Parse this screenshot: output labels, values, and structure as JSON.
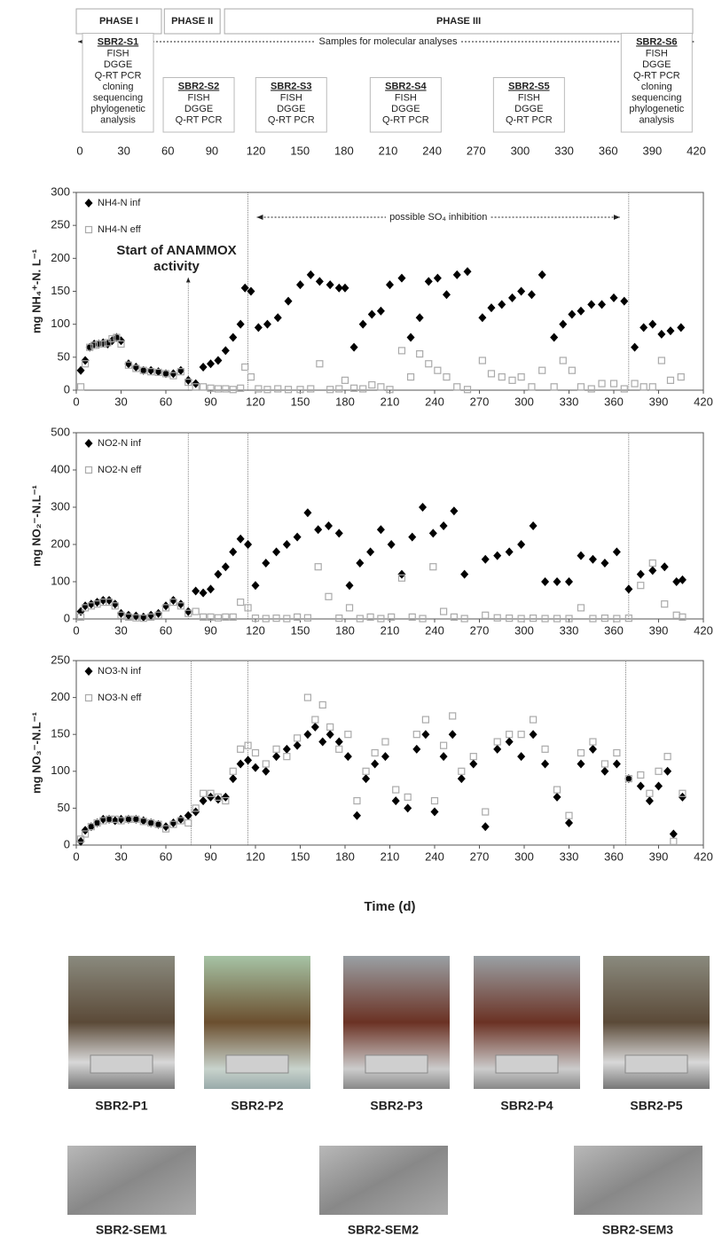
{
  "timeline": {
    "xlim": [
      0,
      420
    ],
    "xticks": [
      0,
      30,
      60,
      90,
      120,
      150,
      180,
      210,
      240,
      270,
      300,
      330,
      360,
      390,
      420
    ],
    "phases": [
      {
        "label": "PHASE I",
        "start": 0,
        "end": 58
      },
      {
        "label": "PHASE II",
        "start": 60,
        "end": 98
      },
      {
        "label": "PHASE III",
        "start": 101,
        "end": 420
      }
    ],
    "samples_label": "Samples for molecular analyses",
    "samples": [
      {
        "title": "SBR2-S1",
        "day": 26,
        "lines": [
          "FISH",
          "DGGE",
          "Q-RT PCR",
          "cloning",
          "sequencing",
          "phylogenetic",
          "analysis"
        ]
      },
      {
        "title": "SBR2-S2",
        "day": 81,
        "lines": [
          "FISH",
          "DGGE",
          "Q-RT PCR"
        ]
      },
      {
        "title": "SBR2-S3",
        "day": 144,
        "lines": [
          "FISH",
          "DGGE",
          "Q-RT PCR"
        ]
      },
      {
        "title": "SBR2-S4",
        "day": 222,
        "lines": [
          "FISH",
          "DGGE",
          "Q-RT PCR"
        ]
      },
      {
        "title": "SBR2-S5",
        "day": 306,
        "lines": [
          "FISH",
          "DGGE",
          "Q-RT PCR"
        ]
      },
      {
        "title": "SBR2-S6",
        "day": 393,
        "lines": [
          "FISH",
          "DGGE",
          "Q-RT PCR",
          "cloning",
          "sequencing",
          "phylogenetic",
          "analysis"
        ]
      }
    ]
  },
  "chart_data": [
    {
      "type": "scatter",
      "ylabel": "mg NH₄⁺-N. L⁻¹",
      "xlim": [
        0,
        420
      ],
      "xticks": [
        0,
        30,
        60,
        90,
        120,
        150,
        180,
        210,
        240,
        270,
        300,
        330,
        360,
        390,
        420
      ],
      "ylim": [
        0,
        300
      ],
      "yticks": [
        0,
        50,
        100,
        150,
        200,
        250,
        300
      ],
      "legend": "upper left",
      "vlines": [
        75,
        115,
        370
      ],
      "annotation": [
        "Start of ANAMMOX",
        "activity"
      ],
      "range_annotation": "possible SO₄ inhibition",
      "x": [
        3,
        6,
        9,
        12,
        15,
        18,
        21,
        24,
        27,
        30,
        35,
        40,
        45,
        50,
        55,
        60,
        65,
        70,
        75,
        80,
        85,
        90,
        95,
        100,
        105,
        110,
        113,
        117,
        122,
        128,
        135,
        142,
        150,
        157,
        163,
        170,
        176,
        180,
        186,
        192,
        198,
        204,
        210,
        218,
        224,
        230,
        236,
        242,
        248,
        255,
        262,
        272,
        278,
        285,
        292,
        298,
        305,
        312,
        320,
        326,
        332,
        338,
        345,
        352,
        360,
        367,
        374,
        380,
        386,
        392,
        398,
        405
      ],
      "series": [
        {
          "name": "NH4-N inf",
          "color": "#000000",
          "marker": "diamond",
          "values": [
            30,
            45,
            65,
            70,
            70,
            72,
            70,
            75,
            80,
            75,
            40,
            35,
            30,
            30,
            28,
            25,
            25,
            30,
            15,
            10,
            35,
            40,
            45,
            60,
            80,
            100,
            155,
            150,
            95,
            100,
            110,
            135,
            160,
            175,
            165,
            160,
            155,
            155,
            65,
            100,
            115,
            120,
            160,
            170,
            80,
            110,
            165,
            170,
            145,
            175,
            180,
            110,
            125,
            130,
            140,
            150,
            145,
            175,
            80,
            100,
            115,
            120,
            130,
            130,
            140,
            135,
            65,
            95,
            100,
            85,
            90,
            95
          ]
        },
        {
          "name": "NH4-N eff",
          "color": "#aaaaaa",
          "marker": "square-open",
          "values": [
            5,
            40,
            65,
            68,
            70,
            70,
            72,
            78,
            80,
            70,
            38,
            33,
            30,
            28,
            27,
            25,
            22,
            28,
            12,
            5,
            5,
            3,
            2,
            2,
            1,
            3,
            35,
            20,
            2,
            1,
            2,
            1,
            1,
            2,
            40,
            1,
            2,
            15,
            3,
            2,
            8,
            5,
            1,
            60,
            20,
            55,
            40,
            30,
            20,
            5,
            1,
            45,
            25,
            20,
            15,
            20,
            5,
            30,
            5,
            45,
            30,
            5,
            2,
            10,
            10,
            2,
            10,
            5,
            5,
            45,
            15,
            20
          ]
        }
      ]
    },
    {
      "type": "scatter",
      "ylabel": "mg NO₂⁻-N.L⁻¹",
      "xlim": [
        0,
        420
      ],
      "xticks": [
        0,
        30,
        60,
        90,
        120,
        150,
        180,
        210,
        240,
        270,
        300,
        330,
        360,
        390,
        420
      ],
      "ylim": [
        0,
        500
      ],
      "yticks": [
        0,
        100,
        200,
        300,
        400,
        500
      ],
      "legend": "upper left",
      "vlines": [
        75,
        115,
        370
      ],
      "x": [
        3,
        6,
        10,
        14,
        18,
        22,
        26,
        30,
        35,
        40,
        45,
        50,
        55,
        60,
        65,
        70,
        75,
        80,
        85,
        90,
        95,
        100,
        105,
        110,
        115,
        120,
        127,
        134,
        141,
        148,
        155,
        162,
        169,
        176,
        183,
        190,
        197,
        204,
        211,
        218,
        225,
        232,
        239,
        246,
        253,
        260,
        274,
        282,
        290,
        298,
        306,
        314,
        322,
        330,
        338,
        346,
        354,
        362,
        370,
        378,
        386,
        394,
        402,
        406
      ],
      "series": [
        {
          "name": "NO2-N inf",
          "color": "#000000",
          "marker": "diamond",
          "values": [
            20,
            35,
            40,
            45,
            50,
            50,
            40,
            15,
            10,
            8,
            5,
            10,
            15,
            35,
            50,
            40,
            20,
            75,
            70,
            80,
            120,
            140,
            180,
            215,
            200,
            90,
            150,
            180,
            200,
            220,
            285,
            240,
            250,
            230,
            90,
            150,
            180,
            240,
            200,
            120,
            220,
            300,
            230,
            250,
            290,
            120,
            160,
            170,
            180,
            200,
            250,
            100,
            100,
            100,
            170,
            160,
            150,
            180,
            80,
            120,
            130,
            140,
            100,
            105
          ]
        },
        {
          "name": "NO2-N eff",
          "color": "#aaaaaa",
          "marker": "square-open",
          "values": [
            5,
            30,
            35,
            40,
            45,
            45,
            35,
            10,
            5,
            3,
            2,
            5,
            10,
            30,
            45,
            35,
            15,
            20,
            5,
            5,
            3,
            5,
            5,
            45,
            30,
            2,
            1,
            2,
            1,
            5,
            3,
            140,
            60,
            2,
            30,
            1,
            5,
            1,
            5,
            110,
            5,
            1,
            140,
            20,
            5,
            1,
            10,
            3,
            2,
            1,
            2,
            1,
            1,
            1,
            30,
            1,
            2,
            1,
            2,
            90,
            150,
            40,
            10,
            5
          ]
        }
      ]
    },
    {
      "type": "scatter",
      "ylabel": "mg NO₃⁻-N.L⁻¹",
      "xlabel": "Time (d)",
      "xlim": [
        0,
        420
      ],
      "xticks": [
        0,
        30,
        60,
        90,
        120,
        150,
        180,
        210,
        240,
        270,
        300,
        330,
        360,
        390,
        420
      ],
      "ylim": [
        0,
        250
      ],
      "yticks": [
        0,
        50,
        100,
        150,
        200,
        250
      ],
      "legend": "upper left",
      "vlines": [
        77,
        115,
        368
      ],
      "x": [
        3,
        6,
        10,
        14,
        18,
        22,
        26,
        30,
        35,
        40,
        45,
        50,
        55,
        60,
        65,
        70,
        75,
        80,
        85,
        90,
        95,
        100,
        105,
        110,
        115,
        120,
        127,
        134,
        141,
        148,
        155,
        160,
        165,
        170,
        176,
        182,
        188,
        194,
        200,
        207,
        214,
        222,
        228,
        234,
        240,
        246,
        252,
        258,
        266,
        274,
        282,
        290,
        298,
        306,
        314,
        322,
        330,
        338,
        346,
        354,
        362,
        370,
        378,
        384,
        390,
        396,
        400,
        406
      ],
      "series": [
        {
          "name": "NO3-N inf",
          "color": "#000000",
          "marker": "diamond",
          "values": [
            5,
            20,
            25,
            30,
            35,
            35,
            33,
            35,
            35,
            35,
            33,
            30,
            28,
            25,
            30,
            35,
            40,
            45,
            60,
            65,
            62,
            65,
            90,
            110,
            115,
            105,
            100,
            120,
            130,
            135,
            150,
            160,
            140,
            150,
            140,
            120,
            40,
            90,
            110,
            120,
            60,
            50,
            130,
            150,
            45,
            120,
            150,
            90,
            110,
            25,
            130,
            140,
            120,
            150,
            110,
            65,
            30,
            110,
            130,
            100,
            110,
            90,
            80,
            60,
            80,
            100,
            15,
            65
          ]
        },
        {
          "name": "NO3-N eff",
          "color": "#aaaaaa",
          "marker": "square-open",
          "values": [
            8,
            15,
            25,
            30,
            33,
            35,
            35,
            33,
            35,
            35,
            32,
            30,
            28,
            22,
            28,
            33,
            30,
            50,
            70,
            70,
            65,
            60,
            100,
            130,
            135,
            125,
            110,
            130,
            120,
            145,
            200,
            170,
            190,
            160,
            130,
            150,
            60,
            100,
            125,
            140,
            75,
            65,
            150,
            170,
            60,
            135,
            175,
            100,
            120,
            45,
            140,
            150,
            150,
            170,
            130,
            75,
            40,
            125,
            140,
            110,
            125,
            90,
            95,
            70,
            100,
            120,
            5,
            70
          ]
        }
      ]
    }
  ],
  "photos": [
    "SBR2-P1",
    "SBR2-P2",
    "SBR2-P3",
    "SBR2-P4",
    "SBR2-P5"
  ],
  "sem": [
    "SBR2-SEM1",
    "SBR2-SEM2",
    "SBR2-SEM3"
  ]
}
